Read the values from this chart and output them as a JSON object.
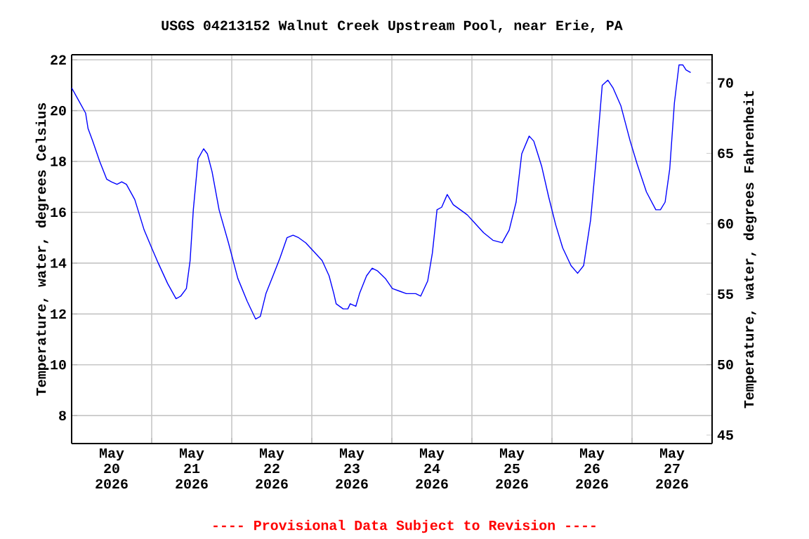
{
  "chart_data": {
    "type": "line",
    "title": "USGS 04213152 Walnut Creek Upstream Pool, near Erie, PA",
    "ylabel": "Temperature, water, degrees Celsius",
    "y2label": "Temperature, water, degrees Fahrenheit",
    "annotations": [
      "---- Provisional Data Subject to Revision ----"
    ],
    "x": [
      "2026-05-20T00:00",
      "2026-05-20T02:06",
      "2026-05-20T04:12",
      "2026-05-20T04:55",
      "2026-05-20T06:19",
      "2026-05-20T08:25",
      "2026-05-20T10:32",
      "2026-05-20T11:56",
      "2026-05-20T13:36",
      "2026-05-20T15:01",
      "2026-05-20T16:25",
      "2026-05-20T18:56",
      "2026-05-20T21:45",
      "2026-05-21T00:00",
      "2026-05-21T01:58",
      "2026-05-21T04:46",
      "2026-05-21T07:18",
      "2026-05-21T08:42",
      "2026-05-21T10:24",
      "2026-05-21T11:31",
      "2026-05-21T12:29",
      "2026-05-21T13:54",
      "2026-05-21T15:34",
      "2026-05-21T16:42",
      "2026-05-21T18:06",
      "2026-05-21T20:12",
      "2026-05-21T23:01",
      "2026-05-22T01:49",
      "2026-05-22T04:38",
      "2026-05-22T07:09",
      "2026-05-22T08:34",
      "2026-05-22T10:15",
      "2026-05-22T12:22",
      "2026-05-22T14:27",
      "2026-05-22T16:34",
      "2026-05-22T18:23",
      "2026-05-22T20:04",
      "2026-05-22T22:11",
      "2026-05-23T00:17",
      "2026-05-23T03:06",
      "2026-05-23T05:11",
      "2026-05-23T06:36",
      "2026-05-23T07:18",
      "2026-05-23T09:24",
      "2026-05-23T10:48",
      "2026-05-23T11:31",
      "2026-05-23T13:12",
      "2026-05-23T14:18",
      "2026-05-23T16:25",
      "2026-05-23T18:06",
      "2026-05-23T19:39",
      "2026-05-23T22:02",
      "2026-05-24T00:09",
      "2026-05-24T02:15",
      "2026-05-24T04:21",
      "2026-05-24T07:09",
      "2026-05-24T08:38",
      "2026-05-24T10:45",
      "2026-05-24T12:09",
      "2026-05-24T13:32",
      "2026-05-24T14:56",
      "2026-05-24T16:36",
      "2026-05-24T18:24",
      "2026-05-24T20:31",
      "2026-05-24T22:36",
      "2026-05-25T00:42",
      "2026-05-25T03:29",
      "2026-05-25T06:17",
      "2026-05-25T09:04",
      "2026-05-25T11:10",
      "2026-05-25T13:15",
      "2026-05-25T14:56",
      "2026-05-25T17:10",
      "2026-05-25T18:33",
      "2026-05-25T20:56",
      "2026-05-25T23:01",
      "2026-05-26T01:08",
      "2026-05-26T03:13",
      "2026-05-26T05:43",
      "2026-05-26T07:41",
      "2026-05-26T09:29",
      "2026-05-26T11:35",
      "2026-05-26T13:15",
      "2026-05-26T15:04",
      "2026-05-26T16:45",
      "2026-05-26T18:17",
      "2026-05-26T20:38",
      "2026-05-26T23:27",
      "2026-05-27T01:32",
      "2026-05-27T04:19",
      "2026-05-27T07:08",
      "2026-05-27T08:31",
      "2026-05-27T09:55",
      "2026-05-27T11:18",
      "2026-05-27T12:42",
      "2026-05-27T14:05",
      "2026-05-27T15:13",
      "2026-05-27T16:11",
      "2026-05-27T17:35"
    ],
    "series": [
      {
        "color": "#0000ff",
        "values": [
          20.9,
          20.4,
          19.9,
          19.3,
          18.8,
          18.0,
          17.3,
          17.2,
          17.1,
          17.2,
          17.1,
          16.5,
          15.3,
          14.6,
          14.0,
          13.2,
          12.6,
          12.7,
          13.0,
          14.1,
          16.1,
          18.1,
          18.5,
          18.3,
          17.6,
          16.1,
          14.8,
          13.4,
          12.5,
          11.8,
          11.9,
          12.8,
          13.5,
          14.2,
          15.0,
          15.1,
          15.0,
          14.8,
          14.5,
          14.1,
          13.5,
          12.8,
          12.4,
          12.2,
          12.2,
          12.4,
          12.3,
          12.8,
          13.5,
          13.8,
          13.7,
          13.4,
          13.0,
          12.9,
          12.8,
          12.8,
          12.7,
          13.3,
          14.4,
          16.1,
          16.2,
          16.7,
          16.3,
          16.1,
          15.9,
          15.6,
          15.2,
          14.9,
          14.8,
          15.3,
          16.4,
          18.3,
          19.0,
          18.8,
          17.8,
          16.6,
          15.5,
          14.6,
          13.9,
          13.6,
          13.9,
          15.7,
          18.1,
          21.0,
          21.2,
          20.9,
          20.2,
          18.8,
          17.9,
          16.8,
          16.1,
          16.1,
          16.4,
          17.7,
          20.3,
          21.8,
          21.8,
          21.6,
          21.5
        ]
      }
    ],
    "xlim": [
      "2026-05-20T00:00",
      "2026-05-28T00:00"
    ],
    "xticks": [
      {
        "value": "2026-05-20T12:00",
        "label": "May 20 2026"
      },
      {
        "value": "2026-05-21T12:00",
        "label": "May 21 2026"
      },
      {
        "value": "2026-05-22T12:00",
        "label": "May 22 2026"
      },
      {
        "value": "2026-05-23T12:00",
        "label": "May 23 2026"
      },
      {
        "value": "2026-05-24T12:00",
        "label": "May 24 2026"
      },
      {
        "value": "2026-05-25T12:00",
        "label": "May 25 2026"
      },
      {
        "value": "2026-05-26T12:00",
        "label": "May 26 2026"
      },
      {
        "value": "2026-05-27T12:00",
        "label": "May 27 2026"
      },
      {
        "value": "2026-05-21T00:00",
        "label": null
      },
      {
        "value": "2026-05-22T00:00",
        "label": null
      },
      {
        "value": "2026-05-23T00:00",
        "label": null
      },
      {
        "value": "2026-05-24T00:00",
        "label": null
      },
      {
        "value": "2026-05-25T00:00",
        "label": null
      },
      {
        "value": "2026-05-26T00:00",
        "label": null
      },
      {
        "value": "2026-05-27T00:00",
        "label": null
      }
    ],
    "ylim": [
      6.9,
      22.2
    ],
    "yticks": [
      8,
      10,
      12,
      14,
      16,
      18,
      20,
      22
    ],
    "y2lim": [
      44.4,
      72.0
    ],
    "y2ticks": [
      45,
      50,
      55,
      60,
      65,
      70
    ],
    "grid": true,
    "marker": "none",
    "line_style": "solid"
  }
}
